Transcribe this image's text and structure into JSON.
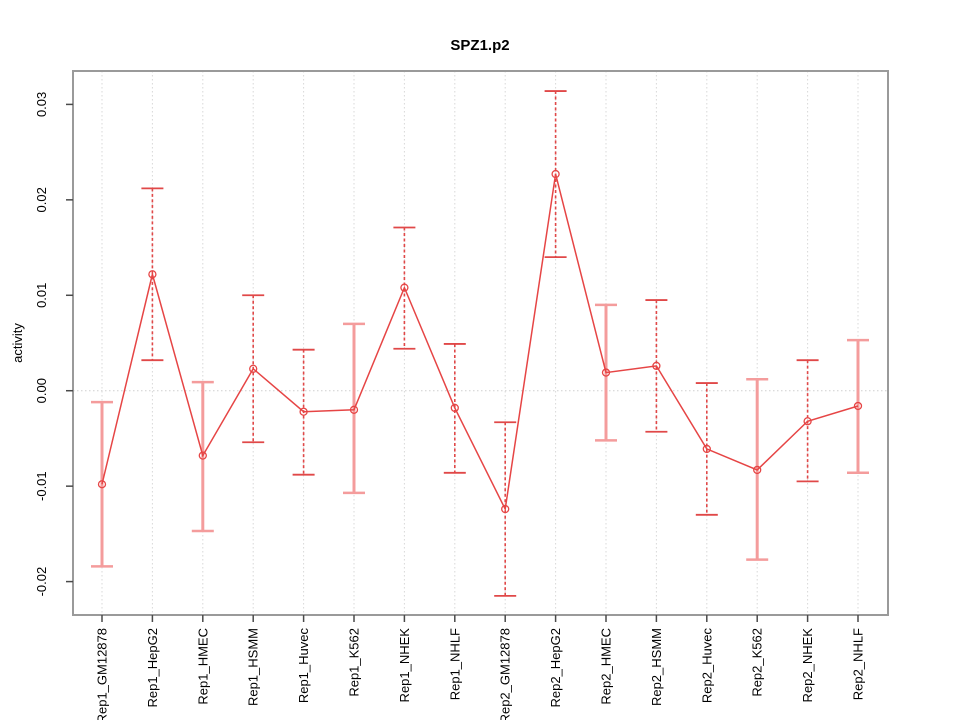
{
  "chart_data": {
    "type": "line",
    "title": "SPZ1.p2",
    "xlabel": "",
    "ylabel": "activity",
    "ylim": [
      -0.0235,
      0.0335
    ],
    "yticks": [
      -0.02,
      -0.01,
      0.0,
      0.01,
      0.02,
      0.03
    ],
    "ytick_labels": [
      "-0.02",
      "-0.01",
      "0.00",
      "0.01",
      "0.02",
      "0.03"
    ],
    "grid": "vertical dotted gridline at each category; dotted horizontal line at zero; full box frame",
    "legend": "none",
    "point_style": "open-circle",
    "categories": [
      "Rep1_GM12878",
      "Rep1_HepG2",
      "Rep1_HMEC",
      "Rep1_HSMM",
      "Rep1_Huvec",
      "Rep1_K562",
      "Rep1_NHEK",
      "Rep1_NHLF",
      "Rep2_GM12878",
      "Rep2_HepG2",
      "Rep2_HMEC",
      "Rep2_HSMM",
      "Rep2_Huvec",
      "Rep2_K562",
      "Rep2_NHEK",
      "Rep2_NHLF"
    ],
    "series": [
      {
        "name": "activity",
        "values": [
          -0.0098,
          0.0122,
          -0.0068,
          0.0023,
          -0.0022,
          -0.002,
          0.0108,
          -0.0018,
          -0.0124,
          0.0227,
          0.0019,
          0.0026,
          -0.0061,
          -0.0083,
          -0.0032,
          -0.0016
        ],
        "ci_low": [
          -0.0184,
          0.0032,
          -0.0147,
          -0.0054,
          -0.0088,
          -0.0107,
          0.0044,
          -0.0086,
          -0.0215,
          0.014,
          -0.0052,
          -0.0043,
          -0.013,
          -0.0177,
          -0.0095,
          -0.0086
        ],
        "ci_high": [
          -0.0012,
          0.0212,
          0.0009,
          0.01,
          0.0043,
          0.007,
          0.0171,
          0.0049,
          -0.0033,
          0.0314,
          0.009,
          0.0095,
          0.0008,
          0.0012,
          0.0032,
          0.0053
        ]
      }
    ],
    "error_bar_styles": [
      "light",
      "dark",
      "light",
      "dark",
      "dark",
      "light",
      "dark",
      "dark",
      "dark",
      "dark",
      "light",
      "dark",
      "dark",
      "light",
      "dark",
      "light"
    ],
    "colors": {
      "series": "#e64545",
      "error_light": "#f49c9c",
      "error_dark": "#e04848",
      "grid": "#d8d8d8",
      "zero_line": "#cfcfcf",
      "box": "#9a9a9a",
      "tick": "#4a4a4a",
      "text": "#000000",
      "background": "#ffffff"
    }
  }
}
